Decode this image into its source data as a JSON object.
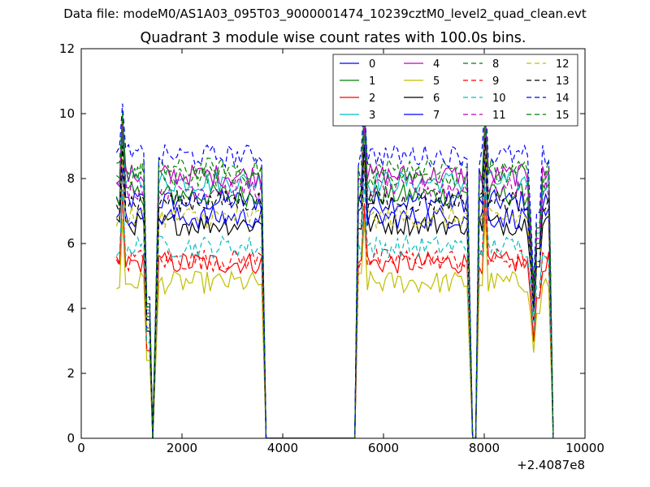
{
  "figure": {
    "suptitle": "Data file: modeM0/AS1A03_095T03_9000001474_10239cztM0_level2_quad_clean.evt"
  },
  "chart_data": {
    "type": "line",
    "title": "Quadrant 3 module wise count rates with 100.0s bins.",
    "xlabel": "",
    "ylabel": "",
    "x_offset_label": "+2.4087e8",
    "xlim": [
      0,
      10000
    ],
    "ylim": [
      0,
      12
    ],
    "xticks": [
      0,
      2000,
      4000,
      6000,
      8000,
      10000
    ],
    "yticks": [
      0,
      2,
      4,
      6,
      8,
      10,
      12
    ],
    "xtick_labels": [
      "0",
      "2000",
      "4000",
      "6000",
      "8000",
      "10000"
    ],
    "ytick_labels": [
      "0",
      "2",
      "4",
      "6",
      "8",
      "10",
      "12"
    ],
    "grid": false,
    "legend_location": "upper-right",
    "legend_columns": 4,
    "series": [
      {
        "name": "0",
        "color": "#0000ff",
        "dash": "solid"
      },
      {
        "name": "1",
        "color": "#008000",
        "dash": "solid"
      },
      {
        "name": "2",
        "color": "#ff0000",
        "dash": "solid"
      },
      {
        "name": "3",
        "color": "#00bfbf",
        "dash": "solid"
      },
      {
        "name": "4",
        "color": "#bf00bf",
        "dash": "solid"
      },
      {
        "name": "5",
        "color": "#bfbf00",
        "dash": "solid"
      },
      {
        "name": "6",
        "color": "#000000",
        "dash": "solid"
      },
      {
        "name": "7",
        "color": "#0000ff",
        "dash": "solid"
      },
      {
        "name": "8",
        "color": "#008000",
        "dash": "dashed"
      },
      {
        "name": "9",
        "color": "#ff0000",
        "dash": "dashed"
      },
      {
        "name": "10",
        "color": "#00bfbf",
        "dash": "dashed"
      },
      {
        "name": "11",
        "color": "#bf00bf",
        "dash": "dashed"
      },
      {
        "name": "12",
        "color": "#bfbf00",
        "dash": "dashed"
      },
      {
        "name": "13",
        "color": "#000000",
        "dash": "dashed"
      },
      {
        "name": "14",
        "color": "#0000ff",
        "dash": "dashed"
      },
      {
        "name": "15",
        "color": "#008000",
        "dash": "dashed"
      }
    ],
    "series_levels": [
      7.3,
      7.5,
      5.4,
      7.9,
      8.1,
      4.8,
      6.6,
      6.8,
      8.3,
      5.5,
      5.9,
      7.7,
      6.8,
      7.3,
      8.7,
      8.1
    ],
    "time_segments": [
      {
        "start": 700,
        "end": 3600,
        "dips": [
          {
            "at": 1400
          }
        ]
      },
      {
        "start": 5500,
        "end": 7700,
        "dips": []
      },
      {
        "start": 7900,
        "end": 9300,
        "dips": [
          {
            "at": 9000
          }
        ]
      }
    ],
    "data_gap": {
      "start": 3600,
      "end": 5400,
      "value": 0
    }
  }
}
